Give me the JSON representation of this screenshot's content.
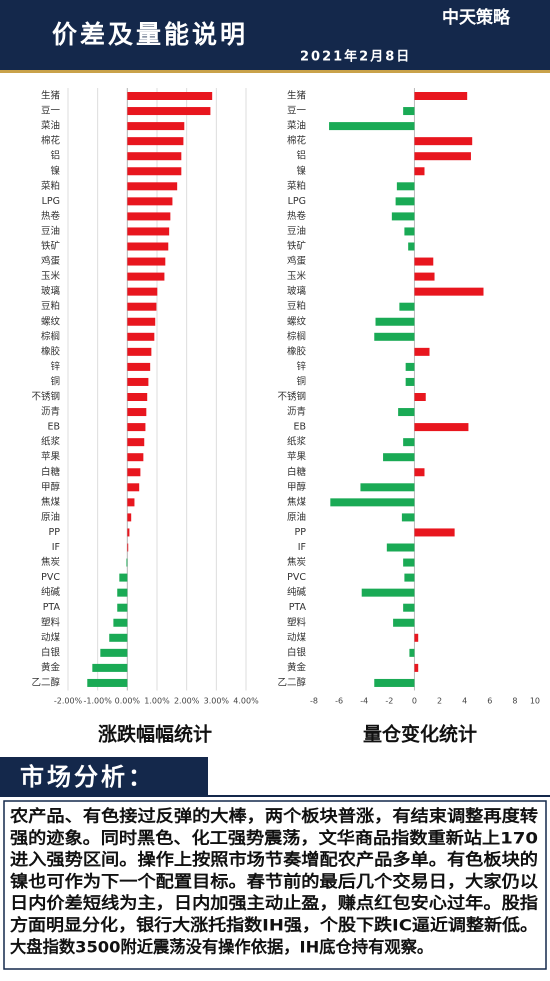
{
  "header": {
    "title": "价差及量能说明",
    "date": "2021年2月8日",
    "logo": "中天策略"
  },
  "chart_data": [
    {
      "type": "bar",
      "orientation": "horizontal",
      "title": "涨跌幅幅统计",
      "categories": [
        "生猪",
        "豆一",
        "菜油",
        "棉花",
        "铝",
        "镍",
        "菜粕",
        "LPG",
        "热卷",
        "豆油",
        "铁矿",
        "鸡蛋",
        "玉米",
        "玻璃",
        "豆粕",
        "螺纹",
        "棕榈",
        "橡胶",
        "锌",
        "铜",
        "不锈钢",
        "沥青",
        "EB",
        "纸浆",
        "苹果",
        "白糖",
        "甲醇",
        "焦煤",
        "原油",
        "PP",
        "IF",
        "焦炭",
        "PVC",
        "纯碱",
        "PTA",
        "塑料",
        "动煤",
        "白银",
        "黄金",
        "乙二醇"
      ],
      "values": [
        2.86,
        2.8,
        1.92,
        1.89,
        1.82,
        1.82,
        1.68,
        1.52,
        1.45,
        1.41,
        1.38,
        1.28,
        1.25,
        1.01,
        0.98,
        0.94,
        0.91,
        0.81,
        0.77,
        0.71,
        0.67,
        0.64,
        0.61,
        0.57,
        0.54,
        0.44,
        0.4,
        0.24,
        0.13,
        0.07,
        0.03,
        -0.03,
        -0.27,
        -0.34,
        -0.34,
        -0.47,
        -0.61,
        -0.91,
        -1.18,
        -1.35
      ],
      "positive_color": "#e8161e",
      "negative_color": "#1aaa55",
      "xlim": [
        -2,
        4
      ],
      "xticks": [
        {
          "value": -2,
          "label": "-2.00%"
        },
        {
          "value": -1,
          "label": "-1.00%"
        },
        {
          "value": 0,
          "label": "0.00%"
        },
        {
          "value": 1,
          "label": "1.00%"
        },
        {
          "value": 2,
          "label": "2.00%"
        },
        {
          "value": 3,
          "label": "3.00%"
        },
        {
          "value": 4,
          "label": "4.00%"
        }
      ],
      "grid": true
    },
    {
      "type": "bar",
      "orientation": "horizontal",
      "title": "量仓变化统计",
      "categories": [
        "生猪",
        "豆一",
        "菜油",
        "棉花",
        "铝",
        "镍",
        "菜粕",
        "LPG",
        "热卷",
        "豆油",
        "铁矿",
        "鸡蛋",
        "玉米",
        "玻璃",
        "豆粕",
        "螺纹",
        "棕榈",
        "橡胶",
        "锌",
        "铜",
        "不锈钢",
        "沥青",
        "EB",
        "纸浆",
        "苹果",
        "白糖",
        "甲醇",
        "焦煤",
        "原油",
        "PP",
        "IF",
        "焦炭",
        "PVC",
        "纯碱",
        "PTA",
        "塑料",
        "动煤",
        "白银",
        "黄金",
        "乙二醇"
      ],
      "values": [
        4.2,
        -0.9,
        -6.8,
        4.6,
        4.5,
        0.8,
        -1.4,
        -1.5,
        -1.8,
        -0.8,
        -0.5,
        1.5,
        1.6,
        5.5,
        -1.2,
        -3.1,
        -3.2,
        1.2,
        -0.7,
        -0.7,
        0.9,
        -1.3,
        4.3,
        -0.9,
        -2.5,
        0.8,
        -4.3,
        -6.7,
        -1.0,
        3.2,
        -2.2,
        -0.9,
        -0.8,
        -4.2,
        -0.9,
        -1.7,
        0.3,
        -0.4,
        0.3,
        -3.2
      ],
      "positive_color": "#e8161e",
      "negative_color": "#1aaa55",
      "xlim": [
        -8,
        10
      ],
      "xticks": [
        -8,
        -6,
        -4,
        -2,
        0,
        2,
        4,
        6,
        8,
        10
      ],
      "grid": false
    }
  ],
  "analysis": {
    "heading": "市场分析：",
    "lines": [
      "农产品、有色接过反弹的大棒，两个板块普涨，有结束调整再度转",
      "强的迹象。同时黑色、化工强势震荡，文华商品指数重新站上170",
      "进入强势区间。操作上按照市场节奏增配农产品多单。有色板块的",
      "镍也可作为下一个配置目标。春节前的最后几个交易日，大家仍以",
      "日内价差短线为主，日内加强主动止盈，赚点红包安心过年。股指",
      "方面明显分化，银行大涨托指数IH强，个股下跌IC逼近调整新低。",
      "大盘指数3500附近震荡没有操作依据，IH底仓持有观察。"
    ]
  }
}
